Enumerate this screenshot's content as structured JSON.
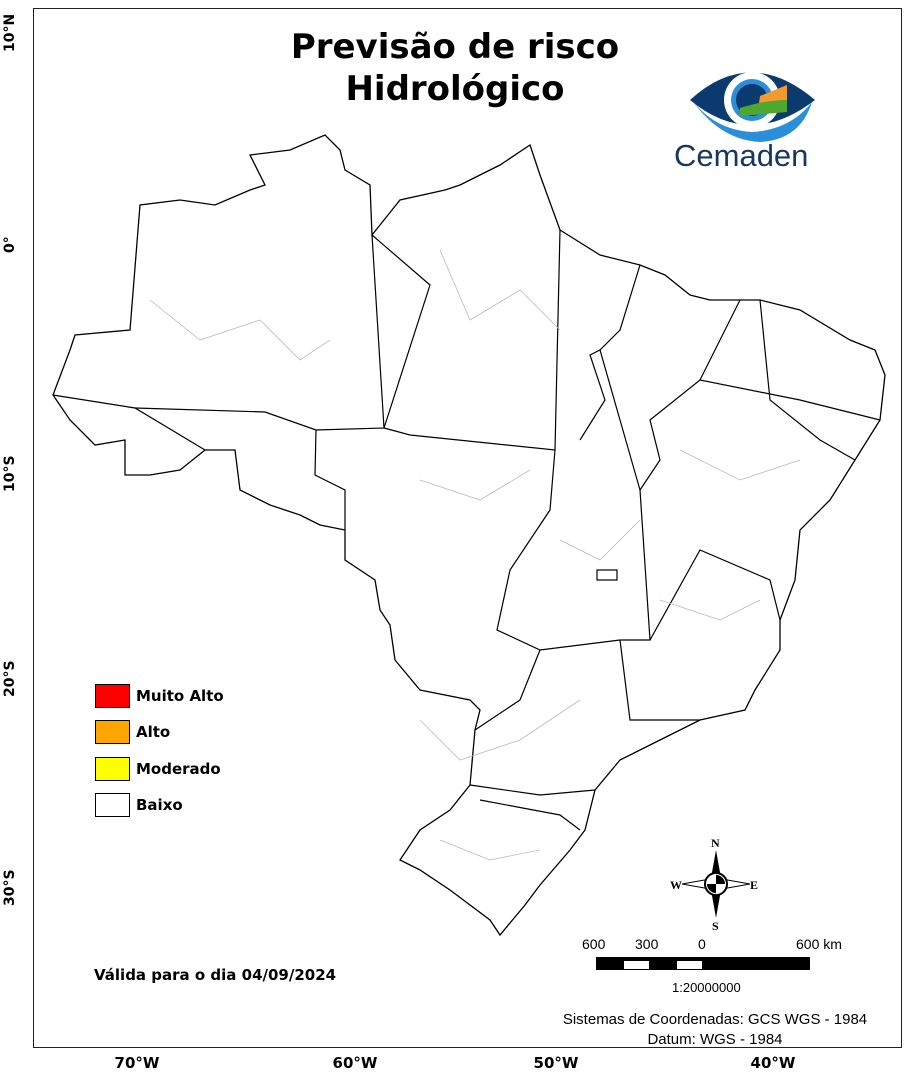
{
  "title": {
    "line1": "Previsão de risco",
    "line2": "Hidrológico"
  },
  "logo": {
    "text": "Cemaden",
    "colors": [
      "#0b3a6e",
      "#2a8fd8",
      "#f29a2e",
      "#4ea72e"
    ]
  },
  "axes": {
    "lat": [
      "10°N",
      "0°",
      "10°S",
      "20°S",
      "30°S"
    ],
    "lon": [
      "70°W",
      "60°W",
      "50°W",
      "40°W"
    ]
  },
  "legend": [
    {
      "label": "Muito Alto",
      "color": "#ff0000"
    },
    {
      "label": "Alto",
      "color": "#ffa500"
    },
    {
      "label": "Moderado",
      "color": "#ffff00"
    },
    {
      "label": "Baixo",
      "color": "#ffffff"
    }
  ],
  "risk_level_shown": "Baixo",
  "valid": "Válida para o dia 04/09/2024",
  "compass": {
    "n": "N",
    "s": "S",
    "e": "E",
    "w": "W"
  },
  "scalebar": {
    "labels": [
      "600",
      "300",
      "0",
      "600 km"
    ],
    "scale": "1:20000000"
  },
  "coords": {
    "line1": "Sistemas de Coordenadas: GCS WGS - 1984",
    "line2": "Datum: WGS - 1984"
  }
}
